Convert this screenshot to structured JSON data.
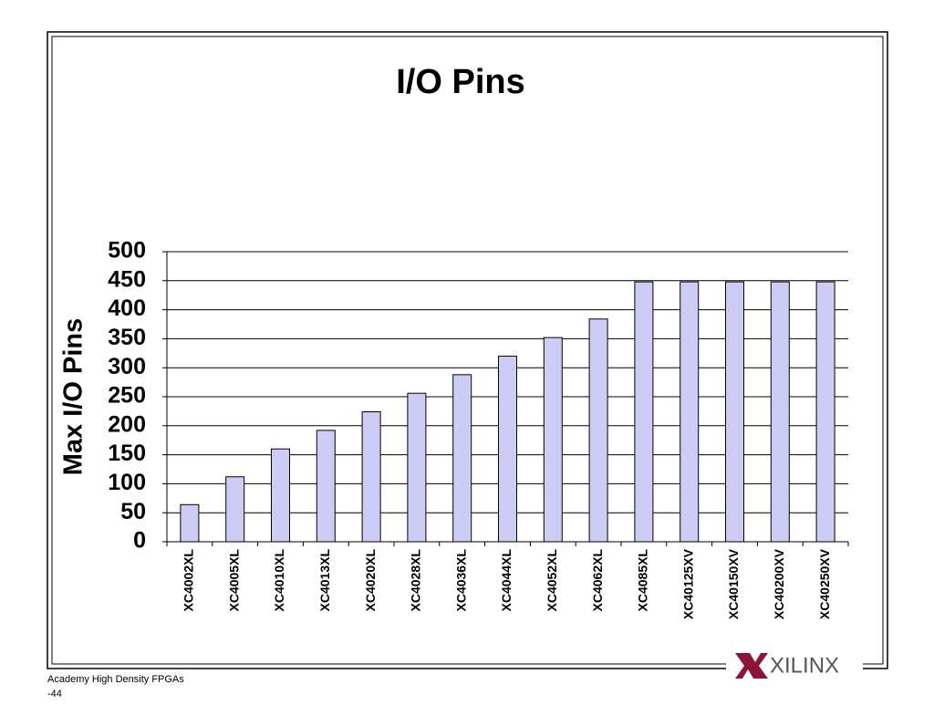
{
  "chart_data": {
    "type": "bar",
    "title": "I/O Pins",
    "y_label": "Max I/O Pins",
    "categories": [
      "XC4002XL",
      "XC4005XL",
      "XC4010XL",
      "XC4013XL",
      "XC4020XL",
      "XC4028XL",
      "XC4036XL",
      "XC4044XL",
      "XC4052XL",
      "XC4062XL",
      "XC4085XL",
      "XC40125XV",
      "XC40150XV",
      "XC40200XV",
      "XC40250XV"
    ],
    "values": [
      64,
      112,
      160,
      192,
      224,
      256,
      288,
      320,
      352,
      384,
      448,
      448,
      448,
      448,
      448
    ],
    "color": "#ccccf5",
    "ylim": [
      0,
      500
    ],
    "yticks": [
      0,
      50,
      100,
      150,
      200,
      250,
      300,
      350,
      400,
      450,
      500
    ],
    "grid": true
  },
  "footer": {
    "line1": "Academy High Density FPGAs",
    "line2": "-44"
  },
  "logo": {
    "text": "XILINX"
  }
}
